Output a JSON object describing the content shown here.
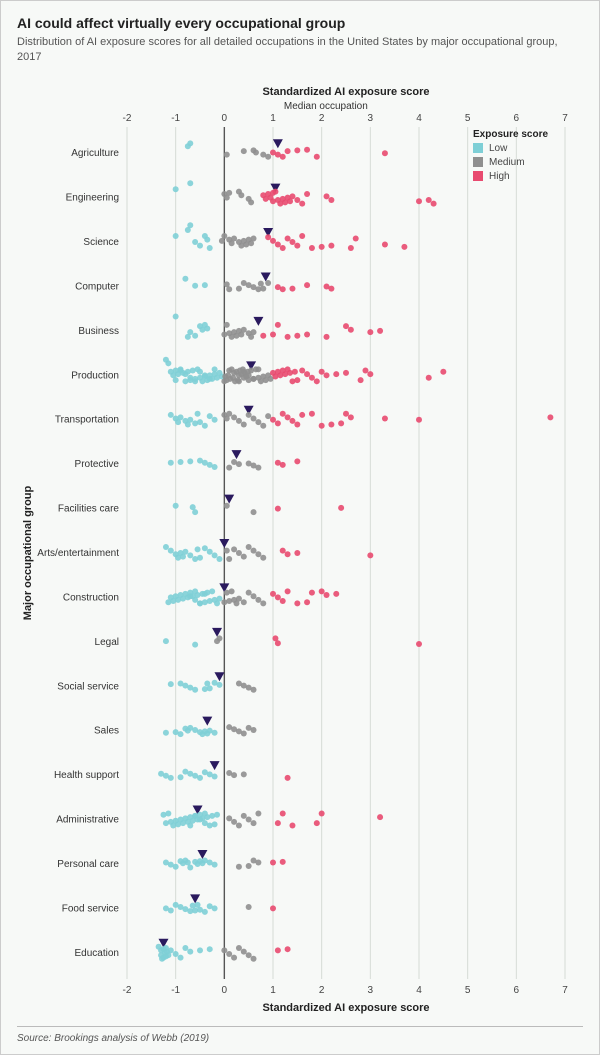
{
  "title": "AI could affect virtually every occupational group",
  "subtitle": "Distribution of AI exposure scores for all detailed occupations in the United States by major occupational group, 2017",
  "source": "Source: Brookings analysis of Webb (2019)",
  "chart": {
    "type": "strip-dot",
    "x_axis": {
      "title": "Standardized AI exposure score",
      "min": -2,
      "max": 7,
      "ticks": [
        -2,
        -1,
        0,
        1,
        2,
        3,
        4,
        5,
        6,
        7
      ]
    },
    "y_axis": {
      "title": "Major occupational group"
    },
    "median_label": "Median occupation",
    "zero_line_color": "#555555",
    "grid_color": "#d6dcd6",
    "background_color": "#f7f9f7",
    "colors": {
      "Low": "#7ecfd6",
      "Medium": "#8f8f8f",
      "High": "#e84a6f"
    },
    "median_marker_color": "#2a1a5e",
    "dot_radius": 3,
    "legend": {
      "title": "Exposure score",
      "items": [
        "Low",
        "Medium",
        "High"
      ],
      "position": "top-right"
    },
    "categories": [
      {
        "name": "Agriculture",
        "median": 1.1,
        "low": [
          -0.75,
          -0.7
        ],
        "med": [
          0.05,
          0.4,
          0.6,
          0.65,
          0.8,
          0.9
        ],
        "high": [
          1.0,
          1.1,
          1.2,
          1.3,
          1.5,
          1.7,
          1.9,
          3.3
        ]
      },
      {
        "name": "Engineering",
        "median": 1.05,
        "low": [
          -1.0,
          -0.7
        ],
        "med": [
          0.0,
          0.05,
          0.1,
          0.3,
          0.35,
          0.5,
          0.55
        ],
        "high": [
          0.8,
          0.85,
          0.9,
          0.95,
          1.0,
          1.0,
          1.05,
          1.1,
          1.15,
          1.2,
          1.25,
          1.3,
          1.35,
          1.4,
          1.5,
          1.6,
          1.7,
          2.1,
          2.2,
          4.0,
          4.2,
          4.3
        ]
      },
      {
        "name": "Science",
        "median": 0.9,
        "low": [
          -1.0,
          -0.75,
          -0.7,
          -0.6,
          -0.5,
          -0.4,
          -0.35,
          -0.3
        ],
        "med": [
          -0.05,
          0.0,
          0.1,
          0.15,
          0.2,
          0.3,
          0.35,
          0.4,
          0.45,
          0.5,
          0.55,
          0.6
        ],
        "high": [
          0.9,
          1.0,
          1.1,
          1.2,
          1.3,
          1.4,
          1.5,
          1.6,
          1.8,
          2.0,
          2.2,
          2.6,
          2.7,
          3.3,
          3.7
        ]
      },
      {
        "name": "Computer",
        "median": 0.85,
        "low": [
          -0.8,
          -0.6,
          -0.4
        ],
        "med": [
          0.05,
          0.1,
          0.3,
          0.4,
          0.5,
          0.6,
          0.7,
          0.75,
          0.8,
          0.9
        ],
        "high": [
          1.1,
          1.2,
          1.4,
          1.7,
          2.1,
          2.2
        ]
      },
      {
        "name": "Business",
        "median": 0.7,
        "low": [
          -1.0,
          -0.75,
          -0.7,
          -0.6,
          -0.5,
          -0.45,
          -0.4,
          -0.35
        ],
        "med": [
          0.0,
          0.05,
          0.1,
          0.15,
          0.2,
          0.25,
          0.3,
          0.35,
          0.4,
          0.5,
          0.55,
          0.6
        ],
        "high": [
          0.8,
          1.0,
          1.1,
          1.3,
          1.5,
          1.7,
          2.1,
          2.5,
          2.6,
          3.0,
          3.2
        ]
      },
      {
        "name": "Production",
        "median": 0.55,
        "low": [
          -1.2,
          -1.15,
          -1.1,
          -1.05,
          -1.0,
          -0.95,
          -0.9,
          -0.85,
          -0.8,
          -0.75,
          -0.7,
          -0.65,
          -0.6,
          -0.55,
          -0.5,
          -0.45,
          -0.4,
          -0.35,
          -0.3,
          -0.25,
          -0.2,
          -0.15,
          -0.1,
          -0.05,
          -1.0,
          -0.9,
          -0.8,
          -0.7,
          -0.6,
          -0.5,
          -0.4,
          -0.3,
          -0.2
        ],
        "med": [
          0.0,
          0.02,
          0.05,
          0.08,
          0.1,
          0.12,
          0.15,
          0.18,
          0.2,
          0.22,
          0.25,
          0.28,
          0.3,
          0.32,
          0.35,
          0.38,
          0.4,
          0.42,
          0.45,
          0.48,
          0.5,
          0.55,
          0.6,
          0.65,
          0.7,
          0.75,
          0.8,
          0.85,
          0.9,
          0.95,
          0.3,
          0.4,
          0.5,
          0.6,
          0.7
        ],
        "high": [
          1.0,
          1.05,
          1.1,
          1.15,
          1.2,
          1.25,
          1.3,
          1.35,
          1.4,
          1.45,
          1.5,
          1.6,
          1.7,
          1.8,
          1.9,
          2.0,
          2.1,
          2.3,
          2.5,
          2.8,
          2.9,
          3.0,
          4.2,
          4.5
        ]
      },
      {
        "name": "Transportation",
        "median": 0.5,
        "low": [
          -1.1,
          -1.0,
          -0.95,
          -0.9,
          -0.8,
          -0.75,
          -0.7,
          -0.6,
          -0.55,
          -0.5,
          -0.4,
          -0.3,
          -0.2
        ],
        "med": [
          0.0,
          0.05,
          0.1,
          0.2,
          0.3,
          0.4,
          0.5,
          0.6,
          0.7,
          0.8,
          0.9
        ],
        "high": [
          1.0,
          1.1,
          1.2,
          1.3,
          1.4,
          1.5,
          1.6,
          1.8,
          2.0,
          2.2,
          2.4,
          2.5,
          2.6,
          3.3,
          4.0,
          6.7
        ]
      },
      {
        "name": "Protective",
        "median": 0.25,
        "low": [
          -1.1,
          -0.9,
          -0.7,
          -0.5,
          -0.4,
          -0.3,
          -0.2
        ],
        "med": [
          0.1,
          0.2,
          0.3,
          0.5,
          0.6,
          0.7
        ],
        "high": [
          1.1,
          1.2,
          1.5
        ]
      },
      {
        "name": "Facilities care",
        "median": 0.1,
        "low": [
          -1.0,
          -0.65,
          -0.6
        ],
        "med": [
          0.05,
          0.6
        ],
        "high": [
          1.1,
          2.4
        ]
      },
      {
        "name": "Arts/entertainment",
        "median": 0.0,
        "low": [
          -1.2,
          -1.1,
          -1.0,
          -0.95,
          -0.9,
          -0.85,
          -0.8,
          -0.7,
          -0.6,
          -0.55,
          -0.5,
          -0.4,
          -0.3,
          -0.2,
          -0.1
        ],
        "med": [
          0.05,
          0.1,
          0.2,
          0.3,
          0.4,
          0.5,
          0.6,
          0.7,
          0.8
        ],
        "high": [
          1.2,
          1.3,
          1.5,
          3.0
        ]
      },
      {
        "name": "Construction",
        "median": 0.0,
        "low": [
          -1.15,
          -1.1,
          -1.05,
          -1.0,
          -0.95,
          -0.9,
          -0.85,
          -0.8,
          -0.75,
          -0.7,
          -0.65,
          -0.6,
          -0.55,
          -0.5,
          -0.45,
          -0.4,
          -0.35,
          -0.3,
          -0.25,
          -0.2,
          -0.15,
          -0.1,
          -0.7,
          -0.6,
          -0.5,
          -0.4
        ],
        "med": [
          0.0,
          0.05,
          0.1,
          0.15,
          0.2,
          0.25,
          0.3,
          0.4,
          0.5,
          0.6,
          0.7,
          0.8
        ],
        "high": [
          1.0,
          1.1,
          1.2,
          1.3,
          1.5,
          1.7,
          1.8,
          2.0,
          2.1,
          2.3
        ]
      },
      {
        "name": "Legal",
        "median": -0.15,
        "low": [
          -1.2,
          -0.6
        ],
        "med": [
          -0.15,
          -0.1
        ],
        "high": [
          1.05,
          1.1,
          4.0
        ]
      },
      {
        "name": "Social service",
        "median": -0.1,
        "low": [
          -1.1,
          -0.9,
          -0.8,
          -0.7,
          -0.6,
          -0.4,
          -0.35,
          -0.3,
          -0.2,
          -0.1
        ],
        "med": [
          0.3,
          0.4,
          0.5,
          0.6
        ],
        "high": []
      },
      {
        "name": "Sales",
        "median": -0.35,
        "low": [
          -1.2,
          -1.0,
          -0.9,
          -0.8,
          -0.75,
          -0.7,
          -0.6,
          -0.5,
          -0.45,
          -0.4,
          -0.35,
          -0.3,
          -0.2
        ],
        "med": [
          0.1,
          0.2,
          0.3,
          0.4,
          0.5,
          0.6
        ],
        "high": []
      },
      {
        "name": "Health support",
        "median": -0.2,
        "low": [
          -1.3,
          -1.2,
          -1.1,
          -0.9,
          -0.8,
          -0.7,
          -0.6,
          -0.5,
          -0.4,
          -0.3,
          -0.2
        ],
        "med": [
          0.1,
          0.2,
          0.4
        ],
        "high": [
          1.3
        ]
      },
      {
        "name": "Administrative",
        "median": -0.55,
        "low": [
          -1.25,
          -1.2,
          -1.15,
          -1.1,
          -1.05,
          -1.0,
          -0.95,
          -0.9,
          -0.85,
          -0.8,
          -0.75,
          -0.7,
          -0.65,
          -0.6,
          -0.55,
          -0.5,
          -0.45,
          -0.4,
          -0.35,
          -0.3,
          -0.25,
          -0.2,
          -0.15,
          -0.7,
          -0.6,
          -0.5,
          -0.4
        ],
        "med": [
          0.1,
          0.2,
          0.3,
          0.4,
          0.5,
          0.6,
          0.7
        ],
        "high": [
          1.1,
          1.2,
          1.4,
          1.9,
          2.0,
          3.2
        ]
      },
      {
        "name": "Personal care",
        "median": -0.45,
        "low": [
          -1.2,
          -1.1,
          -1.0,
          -0.9,
          -0.85,
          -0.8,
          -0.75,
          -0.7,
          -0.6,
          -0.55,
          -0.5,
          -0.45,
          -0.4,
          -0.3,
          -0.2
        ],
        "med": [
          0.3,
          0.5,
          0.6,
          0.7
        ],
        "high": [
          1.0,
          1.2
        ]
      },
      {
        "name": "Food service",
        "median": -0.6,
        "low": [
          -1.2,
          -1.1,
          -1.0,
          -0.9,
          -0.8,
          -0.7,
          -0.65,
          -0.6,
          -0.55,
          -0.5,
          -0.4,
          -0.3,
          -0.2
        ],
        "med": [
          0.5
        ],
        "high": [
          1.0
        ]
      },
      {
        "name": "Education",
        "median": -1.25,
        "low": [
          -1.35,
          -1.3,
          -1.3,
          -1.28,
          -1.25,
          -1.25,
          -1.22,
          -1.2,
          -1.2,
          -1.18,
          -1.15,
          -1.1,
          -1.0,
          -0.9,
          -0.8,
          -0.7,
          -0.5,
          -0.3
        ],
        "med": [
          0.0,
          0.1,
          0.2,
          0.3,
          0.4,
          0.5,
          0.6
        ],
        "high": [
          1.1,
          1.3
        ]
      }
    ]
  }
}
